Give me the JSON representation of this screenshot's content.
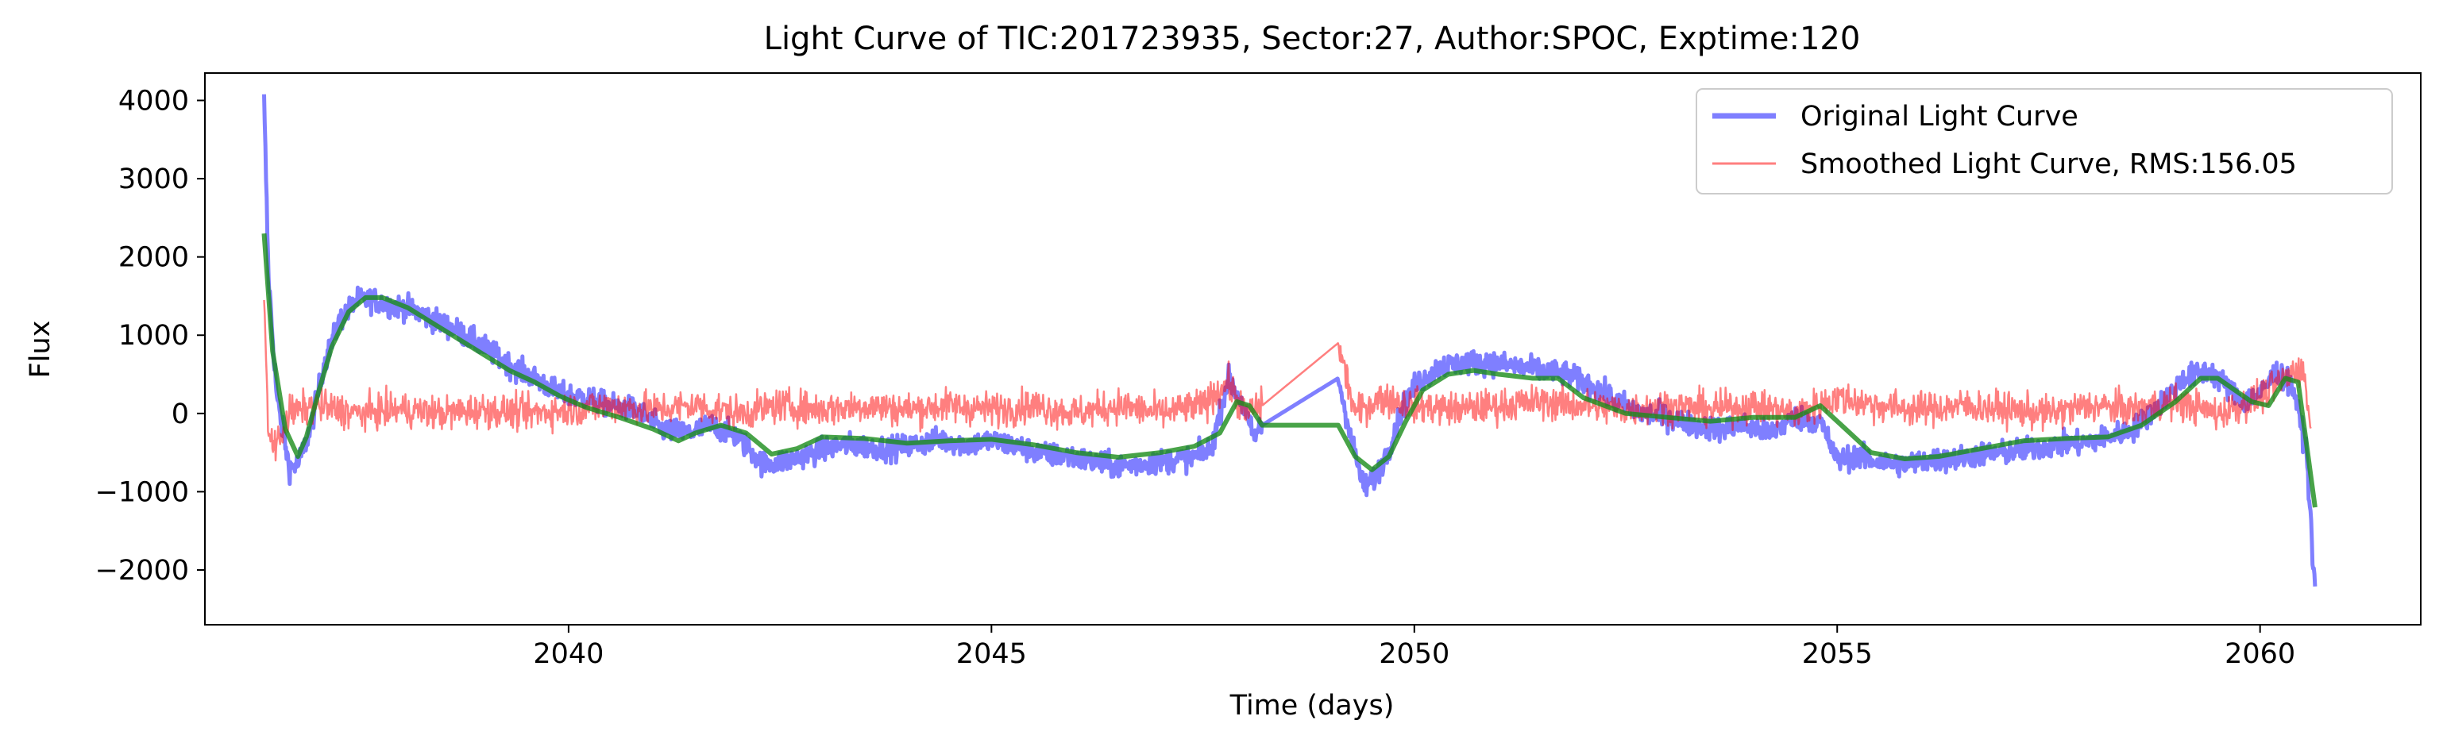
{
  "chart_data": {
    "type": "line",
    "title": "Light Curve of TIC:201723935, Sector:27, Author:SPOC, Exptime:120",
    "xlabel": "Time (days)",
    "ylabel": "Flux",
    "xlim": [
      2035.7,
      2061.9
    ],
    "ylim": [
      -2700,
      4350
    ],
    "x_ticks": [
      2040,
      2045,
      2050,
      2055,
      2060
    ],
    "y_ticks": [
      -2000,
      -1000,
      0,
      1000,
      2000,
      3000,
      4000
    ],
    "x_tick_labels": [
      "2040",
      "2045",
      "2050",
      "2055",
      "2060"
    ],
    "y_tick_labels": [
      "−2000",
      "−1000",
      "0",
      "1000",
      "2000",
      "3000",
      "4000"
    ],
    "grid": false,
    "legend_position": "top-right",
    "series": [
      {
        "name": "Original Light Curve",
        "color": "#0000ff",
        "opacity": 0.5,
        "noise": 110,
        "x": [
          2036.4,
          2036.45,
          2036.55,
          2036.7,
          2036.8,
          2036.95,
          2037.1,
          2037.3,
          2037.5,
          2037.7,
          2037.9,
          2038.1,
          2038.4,
          2038.7,
          2039.0,
          2039.3,
          2039.6,
          2039.9,
          2040.2,
          2040.5,
          2040.8,
          2041.1,
          2041.4,
          2041.7,
          2042.0,
          2042.3,
          2042.6,
          2042.9,
          2043.2,
          2043.5,
          2043.8,
          2044.1,
          2044.4,
          2044.7,
          2045.0,
          2045.3,
          2045.6,
          2045.9,
          2046.2,
          2046.5,
          2046.8,
          2047.1,
          2047.4,
          2047.6,
          2047.8,
          2047.95,
          2048.1,
          2048.2,
          2049.1,
          2049.25,
          2049.4,
          2049.55,
          2049.7,
          2049.85,
          2050.0,
          2050.3,
          2050.6,
          2050.9,
          2051.2,
          2051.5,
          2051.8,
          2052.1,
          2052.4,
          2052.7,
          2053.0,
          2053.3,
          2053.6,
          2053.9,
          2054.2,
          2054.5,
          2054.8,
          2055.0,
          2055.2,
          2055.5,
          2055.8,
          2056.1,
          2056.4,
          2056.7,
          2057.0,
          2057.3,
          2057.6,
          2057.9,
          2058.2,
          2058.5,
          2058.8,
          2059.1,
          2059.4,
          2059.6,
          2059.8,
          2060.0,
          2060.2,
          2060.4,
          2060.55,
          2060.65
        ],
        "values": [
          4000,
          1800,
          200,
          -700,
          -650,
          -200,
          600,
          1200,
          1450,
          1450,
          1380,
          1350,
          1200,
          1050,
          850,
          620,
          450,
          250,
          200,
          100,
          50,
          -200,
          -250,
          -150,
          -300,
          -650,
          -600,
          -500,
          -400,
          -420,
          -450,
          -400,
          -330,
          -400,
          -350,
          -420,
          -520,
          -550,
          -620,
          -680,
          -640,
          -600,
          -560,
          -450,
          450,
          150,
          -300,
          -150,
          450,
          -300,
          -950,
          -800,
          -450,
          50,
          350,
          600,
          650,
          650,
          600,
          550,
          500,
          350,
          150,
          0,
          -50,
          -150,
          -200,
          -150,
          -250,
          -50,
          -100,
          -600,
          -550,
          -620,
          -650,
          -600,
          -580,
          -520,
          -500,
          -450,
          -400,
          -380,
          -300,
          -200,
          100,
          450,
          550,
          350,
          150,
          250,
          550,
          300,
          -500,
          -2300
        ]
      },
      {
        "name": "Smoothed Light Curve, RMS:156.05",
        "color": "#ff0000",
        "opacity": 0.5,
        "noise": 155,
        "x": [
          2036.4,
          2036.45,
          2036.55,
          2036.7,
          2037.0,
          2037.5,
          2038.0,
          2038.5,
          2039.0,
          2039.5,
          2040.0,
          2040.5,
          2041.0,
          2041.5,
          2042.0,
          2042.5,
          2043.0,
          2043.5,
          2044.0,
          2044.5,
          2045.0,
          2045.5,
          2046.0,
          2046.5,
          2047.0,
          2047.5,
          2047.8,
          2048.0,
          2048.2,
          2049.1,
          2049.3,
          2049.6,
          2050.0,
          2050.5,
          2051.0,
          2051.5,
          2052.0,
          2052.5,
          2053.0,
          2053.5,
          2054.0,
          2054.5,
          2055.0,
          2055.5,
          2056.0,
          2056.5,
          2057.0,
          2057.5,
          2058.0,
          2058.5,
          2059.0,
          2059.5,
          2060.0,
          2060.3,
          2060.5,
          2060.6
        ],
        "values": [
          1500,
          -300,
          -400,
          0,
          100,
          0,
          50,
          0,
          50,
          0,
          50,
          100,
          50,
          100,
          0,
          100,
          50,
          100,
          50,
          100,
          50,
          100,
          0,
          100,
          0,
          100,
          400,
          0,
          100,
          900,
          0,
          200,
          100,
          50,
          100,
          150,
          100,
          50,
          100,
          50,
          100,
          0,
          200,
          100,
          50,
          100,
          50,
          0,
          100,
          50,
          150,
          0,
          200,
          450,
          600,
          -150
        ]
      },
      {
        "name": "",
        "color": "#1a8c1a",
        "opacity": 0.8,
        "noise": 0,
        "x": [
          2036.4,
          2036.5,
          2036.65,
          2036.8,
          2036.9,
          2037.05,
          2037.2,
          2037.4,
          2037.6,
          2037.8,
          2038.1,
          2038.4,
          2038.7,
          2039.0,
          2039.3,
          2039.6,
          2039.9,
          2040.2,
          2040.6,
          2041.0,
          2041.3,
          2041.5,
          2041.8,
          2042.1,
          2042.4,
          2042.7,
          2043.0,
          2043.5,
          2044.0,
          2044.5,
          2045.0,
          2045.5,
          2046.0,
          2046.5,
          2047.0,
          2047.4,
          2047.7,
          2047.9,
          2048.05,
          2048.2,
          2049.1,
          2049.3,
          2049.5,
          2049.7,
          2049.9,
          2050.1,
          2050.4,
          2050.7,
          2051.0,
          2051.4,
          2051.7,
          2052.0,
          2052.5,
          2053.0,
          2053.5,
          2054.0,
          2054.5,
          2054.8,
          2055.1,
          2055.4,
          2055.8,
          2056.2,
          2056.7,
          2057.2,
          2057.7,
          2058.2,
          2058.6,
          2059.0,
          2059.3,
          2059.5,
          2059.7,
          2059.9,
          2060.1,
          2060.3,
          2060.45,
          2060.65
        ],
        "values": [
          2300,
          800,
          -200,
          -550,
          -300,
          300,
          850,
          1300,
          1480,
          1480,
          1350,
          1150,
          950,
          750,
          550,
          400,
          220,
          80,
          -50,
          -200,
          -350,
          -250,
          -150,
          -250,
          -520,
          -450,
          -300,
          -320,
          -380,
          -350,
          -330,
          -400,
          -500,
          -560,
          -500,
          -420,
          -250,
          150,
          100,
          -150,
          -150,
          -550,
          -720,
          -550,
          -100,
          300,
          500,
          550,
          500,
          450,
          450,
          200,
          0,
          -50,
          -100,
          -50,
          -50,
          100,
          -200,
          -500,
          -580,
          -550,
          -450,
          -350,
          -320,
          -300,
          -150,
          150,
          450,
          450,
          300,
          150,
          100,
          450,
          400,
          -1200
        ]
      }
    ]
  }
}
